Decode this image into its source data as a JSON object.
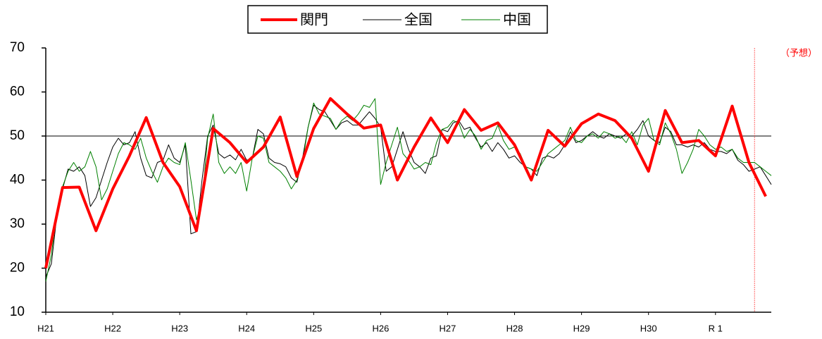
{
  "chart_data": {
    "type": "line",
    "xlim": [
      0,
      130
    ],
    "ylim": [
      10,
      70
    ],
    "xticks": [
      {
        "value": 0,
        "label": "H21"
      },
      {
        "value": 12,
        "label": "H22"
      },
      {
        "value": 24,
        "label": "H23"
      },
      {
        "value": 36,
        "label": "H24"
      },
      {
        "value": 48,
        "label": "H25"
      },
      {
        "value": 60,
        "label": "H26"
      },
      {
        "value": 72,
        "label": "H27"
      },
      {
        "value": 84,
        "label": "H28"
      },
      {
        "value": 96,
        "label": "H29"
      },
      {
        "value": 108,
        "label": "H30"
      },
      {
        "value": 120,
        "label": "R 1"
      }
    ],
    "yticks": [
      10,
      20,
      30,
      40,
      50,
      60,
      70
    ],
    "reference_line": 50,
    "forecast": {
      "x": 127,
      "label": "（予想）",
      "color": "#ff6666"
    },
    "legend": "top",
    "series": [
      {
        "name": "関門",
        "color": "#ff0000",
        "width": 4,
        "x": [
          0,
          3,
          6,
          9,
          12,
          15,
          18,
          21,
          24,
          27,
          30,
          33,
          36,
          39,
          42,
          45,
          48,
          51,
          54,
          57,
          60,
          63,
          66,
          69,
          72,
          75,
          78,
          81,
          84,
          87,
          90,
          93,
          96,
          99,
          102,
          105,
          108,
          111,
          114,
          117,
          120,
          123,
          126,
          129
        ],
        "values": [
          20,
          38.3,
          38.4,
          28.5,
          38,
          45.5,
          54.2,
          44,
          38.5,
          28.5,
          51.7,
          48.5,
          44,
          47.5,
          54.3,
          40.8,
          51.7,
          58.5,
          55,
          51.8,
          52.5,
          40,
          47.5,
          54.1,
          48.5,
          56,
          51.3,
          53,
          48,
          40,
          51.3,
          47.7,
          52.8,
          55,
          53.5,
          49.5,
          42,
          55.8,
          48.5,
          49,
          45.5,
          56.8,
          44,
          36.3
        ]
      },
      {
        "name": "全国",
        "color": "#000000",
        "width": 1,
        "x": [
          0,
          1,
          2,
          3,
          4,
          5,
          6,
          7,
          8,
          9,
          10,
          11,
          12,
          13,
          14,
          15,
          16,
          17,
          18,
          19,
          20,
          21,
          22,
          23,
          24,
          25,
          26,
          27,
          28,
          29,
          30,
          31,
          32,
          33,
          34,
          35,
          36,
          37,
          38,
          39,
          40,
          41,
          42,
          43,
          44,
          45,
          46,
          47,
          48,
          49,
          50,
          51,
          52,
          53,
          54,
          55,
          56,
          57,
          58,
          59,
          60,
          61,
          62,
          63,
          64,
          65,
          66,
          67,
          68,
          69,
          70,
          71,
          72,
          73,
          74,
          75,
          76,
          77,
          78,
          79,
          80,
          81,
          82,
          83,
          84,
          85,
          86,
          87,
          88,
          89,
          90,
          91,
          92,
          93,
          94,
          95,
          96,
          97,
          98,
          99,
          100,
          101,
          102,
          103,
          104,
          105,
          106,
          107,
          108,
          109,
          110,
          111,
          112,
          113,
          114,
          115,
          116,
          117,
          118,
          119,
          120,
          121,
          122,
          123,
          124,
          125,
          126,
          127,
          128,
          129,
          130
        ],
        "values": [
          18,
          21,
          32,
          38,
          42.5,
          42,
          43,
          41,
          34,
          36,
          40,
          44,
          47.5,
          49.5,
          48,
          48.5,
          51,
          45,
          41,
          40.5,
          44,
          44.5,
          48,
          45,
          44,
          48,
          27.8,
          28.3,
          40,
          50,
          52.5,
          46,
          45,
          45.7,
          44.6,
          47,
          44.5,
          45,
          51.5,
          50.5,
          45,
          44,
          43.7,
          43,
          40.5,
          39.5,
          45,
          52,
          57,
          56,
          55.5,
          53.5,
          51.5,
          53,
          53.5,
          52.5,
          52.5,
          54,
          55.5,
          54,
          52,
          42,
          43,
          47,
          51,
          47,
          44,
          43,
          41.5,
          45,
          45.5,
          51.5,
          51,
          53,
          53.5,
          51.5,
          52,
          49.5,
          47.5,
          48.5,
          46.5,
          48.5,
          47,
          45,
          45.5,
          44,
          43,
          42.5,
          41,
          45,
          45.5,
          45,
          46,
          48,
          51,
          48.5,
          49,
          50,
          51,
          50,
          49.5,
          50.5,
          50,
          49.5,
          50.5,
          50,
          51.5,
          53.5,
          50,
          49,
          48.5,
          52,
          51,
          48,
          48,
          47.5,
          48,
          47.5,
          48.5,
          47,
          46.5,
          46.5,
          46,
          47,
          44.5,
          43.5,
          42,
          42.5,
          43,
          41,
          39
        ]
      },
      {
        "name": "中国",
        "color": "#008000",
        "width": 1,
        "x": [
          0,
          1,
          2,
          3,
          4,
          5,
          6,
          7,
          8,
          9,
          10,
          11,
          12,
          13,
          14,
          15,
          16,
          17,
          18,
          19,
          20,
          21,
          22,
          23,
          24,
          25,
          26,
          27,
          28,
          29,
          30,
          31,
          32,
          33,
          34,
          35,
          36,
          37,
          38,
          39,
          40,
          41,
          42,
          43,
          44,
          45,
          46,
          47,
          48,
          49,
          50,
          51,
          52,
          53,
          54,
          55,
          56,
          57,
          58,
          59,
          60,
          61,
          62,
          63,
          64,
          65,
          66,
          67,
          68,
          69,
          70,
          71,
          72,
          73,
          74,
          75,
          76,
          77,
          78,
          79,
          80,
          81,
          82,
          83,
          84,
          85,
          86,
          87,
          88,
          89,
          90,
          91,
          92,
          93,
          94,
          95,
          96,
          97,
          98,
          99,
          100,
          101,
          102,
          103,
          104,
          105,
          106,
          107,
          108,
          109,
          110,
          111,
          112,
          113,
          114,
          115,
          116,
          117,
          118,
          119,
          120,
          121,
          122,
          123,
          124,
          125,
          126,
          127,
          128,
          129,
          130
        ],
        "values": [
          17,
          23,
          33,
          38.5,
          42,
          44,
          42,
          43,
          46.5,
          43,
          35.5,
          38,
          42,
          46,
          48.5,
          48,
          47,
          49.5,
          45,
          42,
          39.5,
          43,
          45,
          44,
          43.5,
          48.5,
          40,
          31,
          35,
          49.5,
          55,
          44,
          41.5,
          43,
          41.5,
          44,
          37.5,
          45,
          50,
          49.5,
          44,
          43,
          42,
          40.5,
          38,
          40,
          44,
          52,
          57.5,
          55,
          54.5,
          54,
          51.5,
          53.5,
          54.5,
          53.5,
          55,
          57,
          56.5,
          58.5,
          39,
          44,
          48,
          52,
          46,
          44.5,
          42.5,
          43,
          44,
          43.5,
          48.5,
          51.5,
          52,
          53.5,
          53,
          49.5,
          51.5,
          50,
          47,
          49,
          49.5,
          52.5,
          49,
          47,
          47.5,
          46,
          43,
          42.5,
          42,
          44,
          46,
          47,
          48,
          49,
          52,
          49,
          48.5,
          50,
          50.5,
          49.5,
          51,
          50.5,
          49.5,
          50,
          48.5,
          51,
          48,
          52.5,
          54,
          49,
          48,
          53,
          50.5,
          47,
          41.5,
          44,
          47,
          51.5,
          50,
          48,
          47,
          47.5,
          46.5,
          47,
          45,
          44,
          44,
          44,
          43,
          42,
          41
        ]
      }
    ]
  }
}
